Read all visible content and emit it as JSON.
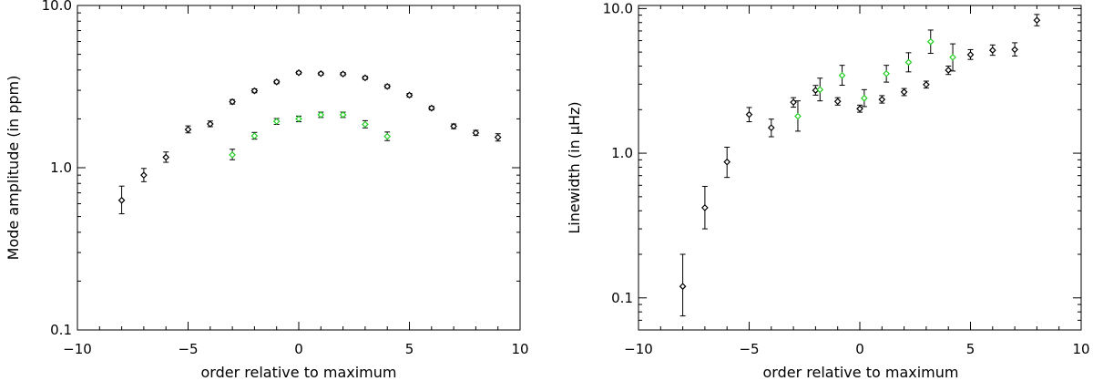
{
  "chart_data": [
    {
      "type": "scatter",
      "title": "",
      "xlabel": "order relative to maximum",
      "ylabel": "Mode amplitude (in ppm)",
      "yscale": "log",
      "xlim": [
        -10,
        10
      ],
      "ylim": [
        0.1,
        10.0
      ],
      "xticks": [
        -10,
        -5,
        0,
        5,
        10
      ],
      "xtick_labels": [
        "−10",
        "−5",
        "0",
        "5",
        "10"
      ],
      "yticks": [
        0.1,
        1.0,
        10.0
      ],
      "ytick_labels": [
        "0.1",
        "1.0",
        "10.0"
      ],
      "grid": false,
      "series": [
        {
          "name": "black",
          "color": "#000000",
          "points": [
            {
              "x": -8,
              "y": 0.63,
              "lo": 0.52,
              "hi": 0.77
            },
            {
              "x": -7,
              "y": 0.9,
              "lo": 0.82,
              "hi": 0.99
            },
            {
              "x": -6,
              "y": 1.16,
              "lo": 1.08,
              "hi": 1.25
            },
            {
              "x": -5,
              "y": 1.72,
              "lo": 1.64,
              "hi": 1.81
            },
            {
              "x": -4,
              "y": 1.86,
              "lo": 1.79,
              "hi": 1.94
            },
            {
              "x": -3,
              "y": 2.55,
              "lo": 2.47,
              "hi": 2.63
            },
            {
              "x": -2,
              "y": 2.98,
              "lo": 2.9,
              "hi": 3.06
            },
            {
              "x": -1,
              "y": 3.38,
              "lo": 3.3,
              "hi": 3.46
            },
            {
              "x": 0,
              "y": 3.85,
              "lo": 3.77,
              "hi": 3.93
            },
            {
              "x": 1,
              "y": 3.8,
              "lo": 3.72,
              "hi": 3.88
            },
            {
              "x": 2,
              "y": 3.78,
              "lo": 3.7,
              "hi": 3.86
            },
            {
              "x": 3,
              "y": 3.58,
              "lo": 3.5,
              "hi": 3.66
            },
            {
              "x": 4,
              "y": 3.17,
              "lo": 3.09,
              "hi": 3.25
            },
            {
              "x": 5,
              "y": 2.8,
              "lo": 2.73,
              "hi": 2.87
            },
            {
              "x": 6,
              "y": 2.33,
              "lo": 2.27,
              "hi": 2.39
            },
            {
              "x": 7,
              "y": 1.8,
              "lo": 1.74,
              "hi": 1.86
            },
            {
              "x": 8,
              "y": 1.64,
              "lo": 1.58,
              "hi": 1.7
            },
            {
              "x": 9,
              "y": 1.54,
              "lo": 1.46,
              "hi": 1.62
            }
          ]
        },
        {
          "name": "green",
          "color": "#22cc22",
          "points": [
            {
              "x": -3,
              "y": 1.2,
              "lo": 1.12,
              "hi": 1.3
            },
            {
              "x": -2,
              "y": 1.57,
              "lo": 1.5,
              "hi": 1.65
            },
            {
              "x": -1,
              "y": 1.93,
              "lo": 1.85,
              "hi": 2.01
            },
            {
              "x": 0,
              "y": 2.0,
              "lo": 1.92,
              "hi": 2.08
            },
            {
              "x": 1,
              "y": 2.12,
              "lo": 2.04,
              "hi": 2.2
            },
            {
              "x": 2,
              "y": 2.12,
              "lo": 2.04,
              "hi": 2.2
            },
            {
              "x": 3,
              "y": 1.85,
              "lo": 1.76,
              "hi": 1.95
            },
            {
              "x": 4,
              "y": 1.56,
              "lo": 1.47,
              "hi": 1.66
            }
          ]
        }
      ]
    },
    {
      "type": "scatter",
      "title": "",
      "xlabel": "order relative to maximum",
      "ylabel": "Linewidth (in μHz)",
      "yscale": "log",
      "xlim": [
        -10,
        10
      ],
      "ylim": [
        0.06,
        10.5
      ],
      "xticks": [
        -10,
        -5,
        0,
        5,
        10
      ],
      "xtick_labels": [
        "−10",
        "−5",
        "0",
        "5",
        "10"
      ],
      "yticks": [
        0.1,
        1.0,
        10.0
      ],
      "ytick_labels": [
        "0.1",
        "1.0",
        "10.0"
      ],
      "grid": false,
      "series": [
        {
          "name": "black",
          "color": "#000000",
          "points": [
            {
              "x": -8,
              "y": 0.12,
              "lo": 0.075,
              "hi": 0.2
            },
            {
              "x": -7,
              "y": 0.42,
              "lo": 0.3,
              "hi": 0.59
            },
            {
              "x": -6,
              "y": 0.87,
              "lo": 0.68,
              "hi": 1.1
            },
            {
              "x": -5,
              "y": 1.85,
              "lo": 1.65,
              "hi": 2.07
            },
            {
              "x": -4,
              "y": 1.5,
              "lo": 1.3,
              "hi": 1.72
            },
            {
              "x": -3,
              "y": 2.25,
              "lo": 2.08,
              "hi": 2.42
            },
            {
              "x": -2,
              "y": 2.72,
              "lo": 2.52,
              "hi": 2.94
            },
            {
              "x": -1,
              "y": 2.28,
              "lo": 2.15,
              "hi": 2.42
            },
            {
              "x": 0,
              "y": 2.03,
              "lo": 1.92,
              "hi": 2.15
            },
            {
              "x": 1,
              "y": 2.35,
              "lo": 2.22,
              "hi": 2.5
            },
            {
              "x": 2,
              "y": 2.65,
              "lo": 2.5,
              "hi": 2.8
            },
            {
              "x": 3,
              "y": 2.98,
              "lo": 2.82,
              "hi": 3.15
            },
            {
              "x": 4,
              "y": 3.75,
              "lo": 3.5,
              "hi": 4.0
            },
            {
              "x": 5,
              "y": 4.8,
              "lo": 4.45,
              "hi": 5.2
            },
            {
              "x": 6,
              "y": 5.15,
              "lo": 4.75,
              "hi": 5.6
            },
            {
              "x": 7,
              "y": 5.2,
              "lo": 4.7,
              "hi": 5.8
            },
            {
              "x": 8,
              "y": 8.3,
              "lo": 7.6,
              "hi": 9.1
            }
          ]
        },
        {
          "name": "green",
          "color": "#22cc22",
          "points": [
            {
              "x": -2.8,
              "y": 1.8,
              "lo": 1.42,
              "hi": 2.3
            },
            {
              "x": -1.8,
              "y": 2.75,
              "lo": 2.3,
              "hi": 3.3
            },
            {
              "x": -0.8,
              "y": 3.45,
              "lo": 2.95,
              "hi": 4.05
            },
            {
              "x": 0.2,
              "y": 2.4,
              "lo": 2.1,
              "hi": 2.75
            },
            {
              "x": 1.2,
              "y": 3.55,
              "lo": 3.1,
              "hi": 4.05
            },
            {
              "x": 2.2,
              "y": 4.25,
              "lo": 3.65,
              "hi": 4.95
            },
            {
              "x": 3.2,
              "y": 5.9,
              "lo": 4.9,
              "hi": 7.1
            },
            {
              "x": 4.2,
              "y": 4.6,
              "lo": 3.7,
              "hi": 5.7
            }
          ]
        }
      ]
    }
  ]
}
